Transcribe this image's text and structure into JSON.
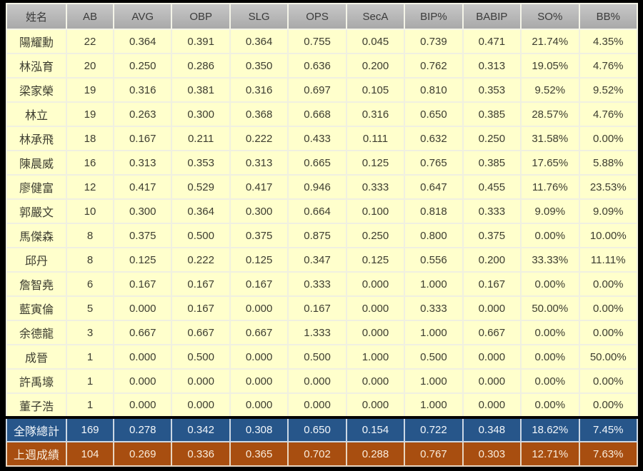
{
  "table": {
    "columns": [
      "姓名",
      "AB",
      "AVG",
      "OBP",
      "SLG",
      "OPS",
      "SecA",
      "BIP%",
      "BABIP",
      "SO%",
      "BB%"
    ],
    "players": [
      {
        "name": "陽耀勳",
        "values": [
          "22",
          "0.364",
          "0.391",
          "0.364",
          "0.755",
          "0.045",
          "0.739",
          "0.471",
          "21.74%",
          "4.35%"
        ]
      },
      {
        "name": "林泓育",
        "values": [
          "20",
          "0.250",
          "0.286",
          "0.350",
          "0.636",
          "0.200",
          "0.762",
          "0.313",
          "19.05%",
          "4.76%"
        ]
      },
      {
        "name": "梁家榮",
        "values": [
          "19",
          "0.316",
          "0.381",
          "0.316",
          "0.697",
          "0.105",
          "0.810",
          "0.353",
          "9.52%",
          "9.52%"
        ]
      },
      {
        "name": "林立",
        "values": [
          "19",
          "0.263",
          "0.300",
          "0.368",
          "0.668",
          "0.316",
          "0.650",
          "0.385",
          "28.57%",
          "4.76%"
        ]
      },
      {
        "name": "林承飛",
        "values": [
          "18",
          "0.167",
          "0.211",
          "0.222",
          "0.433",
          "0.111",
          "0.632",
          "0.250",
          "31.58%",
          "0.00%"
        ]
      },
      {
        "name": "陳晨威",
        "values": [
          "16",
          "0.313",
          "0.353",
          "0.313",
          "0.665",
          "0.125",
          "0.765",
          "0.385",
          "17.65%",
          "5.88%"
        ]
      },
      {
        "name": "廖健富",
        "values": [
          "12",
          "0.417",
          "0.529",
          "0.417",
          "0.946",
          "0.333",
          "0.647",
          "0.455",
          "11.76%",
          "23.53%"
        ]
      },
      {
        "name": "郭嚴文",
        "values": [
          "10",
          "0.300",
          "0.364",
          "0.300",
          "0.664",
          "0.100",
          "0.818",
          "0.333",
          "9.09%",
          "9.09%"
        ]
      },
      {
        "name": "馬傑森",
        "values": [
          "8",
          "0.375",
          "0.500",
          "0.375",
          "0.875",
          "0.250",
          "0.800",
          "0.375",
          "0.00%",
          "10.00%"
        ]
      },
      {
        "name": "邱丹",
        "values": [
          "8",
          "0.125",
          "0.222",
          "0.125",
          "0.347",
          "0.125",
          "0.556",
          "0.200",
          "33.33%",
          "11.11%"
        ]
      },
      {
        "name": "詹智堯",
        "values": [
          "6",
          "0.167",
          "0.167",
          "0.167",
          "0.333",
          "0.000",
          "1.000",
          "0.167",
          "0.00%",
          "0.00%"
        ]
      },
      {
        "name": "藍寅倫",
        "values": [
          "5",
          "0.000",
          "0.167",
          "0.000",
          "0.167",
          "0.000",
          "0.333",
          "0.000",
          "50.00%",
          "0.00%"
        ]
      },
      {
        "name": "余德龍",
        "values": [
          "3",
          "0.667",
          "0.667",
          "0.667",
          "1.333",
          "0.000",
          "1.000",
          "0.667",
          "0.00%",
          "0.00%"
        ]
      },
      {
        "name": "成晉",
        "values": [
          "1",
          "0.000",
          "0.500",
          "0.000",
          "0.500",
          "1.000",
          "0.500",
          "0.000",
          "0.00%",
          "50.00%"
        ]
      },
      {
        "name": "許禹壕",
        "values": [
          "1",
          "0.000",
          "0.000",
          "0.000",
          "0.000",
          "0.000",
          "1.000",
          "0.000",
          "0.00%",
          "0.00%"
        ]
      },
      {
        "name": "董子浩",
        "values": [
          "1",
          "0.000",
          "0.000",
          "0.000",
          "0.000",
          "0.000",
          "1.000",
          "0.000",
          "0.00%",
          "0.00%"
        ]
      }
    ],
    "total_row": {
      "name": "全隊總計",
      "values": [
        "169",
        "0.278",
        "0.342",
        "0.308",
        "0.650",
        "0.154",
        "0.722",
        "0.348",
        "18.62%",
        "7.45%"
      ]
    },
    "last_week_row": {
      "name": "上週成績",
      "values": [
        "104",
        "0.269",
        "0.336",
        "0.365",
        "0.702",
        "0.288",
        "0.767",
        "0.303",
        "12.71%",
        "7.63%"
      ]
    }
  },
  "colors": {
    "page_background": "#000000",
    "header_bg": "#b3b3b3",
    "player_row_bg": "#ffffcc",
    "total_row_bg": "#27568a",
    "last_week_row_bg": "#a84e10",
    "grid_line": "#f0f0e0",
    "header_text": "#3b3b3b",
    "player_text": "#3d3d30",
    "summary_text": "#f5f1e8"
  },
  "chart_data": {
    "type": "table",
    "title": "",
    "columns": [
      "姓名",
      "AB",
      "AVG",
      "OBP",
      "SLG",
      "OPS",
      "SecA",
      "BIP%",
      "BABIP",
      "SO%",
      "BB%"
    ],
    "rows": [
      [
        "陽耀勳",
        22,
        0.364,
        0.391,
        0.364,
        0.755,
        0.045,
        0.739,
        0.471,
        "21.74%",
        "4.35%"
      ],
      [
        "林泓育",
        20,
        0.25,
        0.286,
        0.35,
        0.636,
        0.2,
        0.762,
        0.313,
        "19.05%",
        "4.76%"
      ],
      [
        "梁家榮",
        19,
        0.316,
        0.381,
        0.316,
        0.697,
        0.105,
        0.81,
        0.353,
        "9.52%",
        "9.52%"
      ],
      [
        "林立",
        19,
        0.263,
        0.3,
        0.368,
        0.668,
        0.316,
        0.65,
        0.385,
        "28.57%",
        "4.76%"
      ],
      [
        "林承飛",
        18,
        0.167,
        0.211,
        0.222,
        0.433,
        0.111,
        0.632,
        0.25,
        "31.58%",
        "0.00%"
      ],
      [
        "陳晨威",
        16,
        0.313,
        0.353,
        0.313,
        0.665,
        0.125,
        0.765,
        0.385,
        "17.65%",
        "5.88%"
      ],
      [
        "廖健富",
        12,
        0.417,
        0.529,
        0.417,
        0.946,
        0.333,
        0.647,
        0.455,
        "11.76%",
        "23.53%"
      ],
      [
        "郭嚴文",
        10,
        0.3,
        0.364,
        0.3,
        0.664,
        0.1,
        0.818,
        0.333,
        "9.09%",
        "9.09%"
      ],
      [
        "馬傑森",
        8,
        0.375,
        0.5,
        0.375,
        0.875,
        0.25,
        0.8,
        0.375,
        "0.00%",
        "10.00%"
      ],
      [
        "邱丹",
        8,
        0.125,
        0.222,
        0.125,
        0.347,
        0.125,
        0.556,
        0.2,
        "33.33%",
        "11.11%"
      ],
      [
        "詹智堯",
        6,
        0.167,
        0.167,
        0.167,
        0.333,
        0.0,
        1.0,
        0.167,
        "0.00%",
        "0.00%"
      ],
      [
        "藍寅倫",
        5,
        0.0,
        0.167,
        0.0,
        0.167,
        0.0,
        0.333,
        0.0,
        "50.00%",
        "0.00%"
      ],
      [
        "余德龍",
        3,
        0.667,
        0.667,
        0.667,
        1.333,
        0.0,
        1.0,
        0.667,
        "0.00%",
        "0.00%"
      ],
      [
        "成晉",
        1,
        0.0,
        0.5,
        0.0,
        0.5,
        1.0,
        0.5,
        0.0,
        "0.00%",
        "50.00%"
      ],
      [
        "許禹壕",
        1,
        0.0,
        0.0,
        0.0,
        0.0,
        0.0,
        1.0,
        0.0,
        "0.00%",
        "0.00%"
      ],
      [
        "董子浩",
        1,
        0.0,
        0.0,
        0.0,
        0.0,
        0.0,
        1.0,
        0.0,
        "0.00%",
        "0.00%"
      ],
      [
        "全隊總計",
        169,
        0.278,
        0.342,
        0.308,
        0.65,
        0.154,
        0.722,
        0.348,
        "18.62%",
        "7.45%"
      ],
      [
        "上週成績",
        104,
        0.269,
        0.336,
        0.365,
        0.702,
        0.288,
        0.767,
        0.303,
        "12.71%",
        "7.63%"
      ]
    ]
  }
}
